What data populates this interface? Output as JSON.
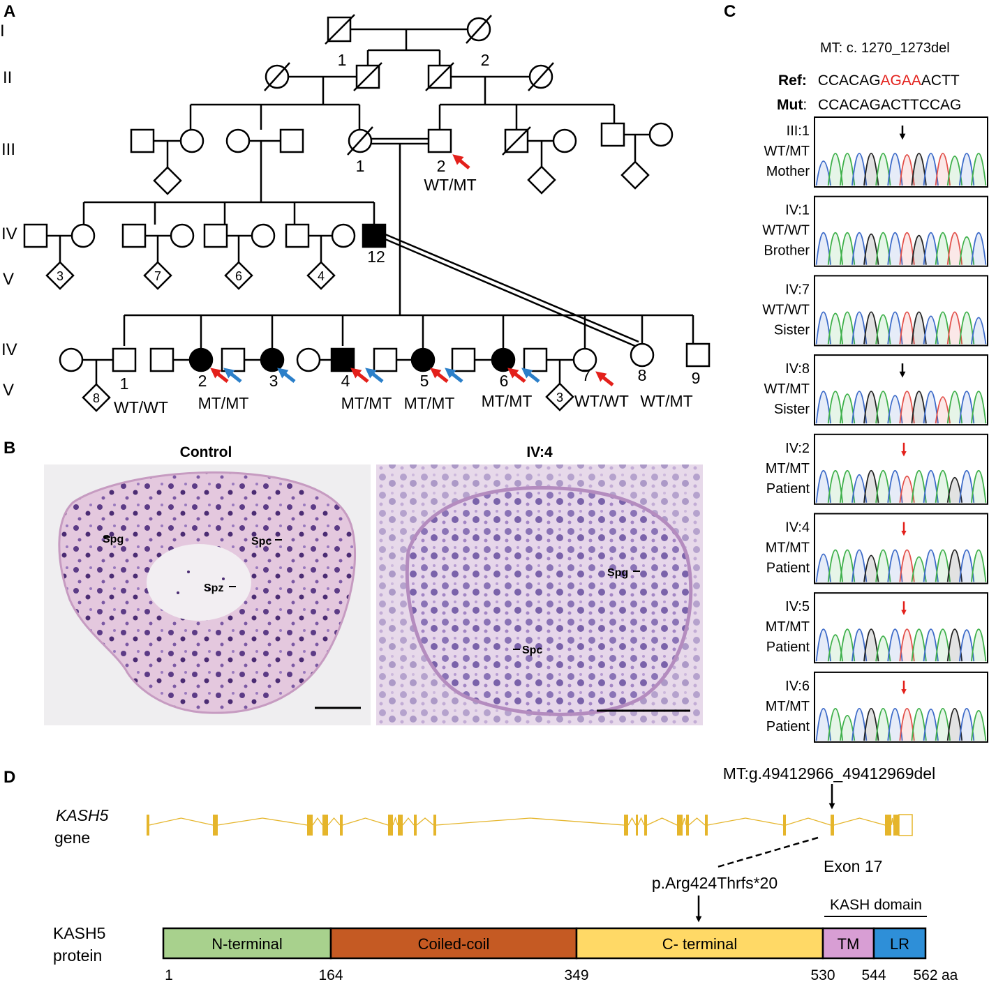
{
  "panels": {
    "a": "A",
    "b": "B",
    "c": "C",
    "d": "D"
  },
  "generations": [
    "I",
    "II",
    "III",
    "IV",
    "V",
    "IV",
    "V"
  ],
  "pedigree": {
    "gen1": [
      "1",
      "2"
    ],
    "gen3": {
      "mother": "1",
      "father": "2",
      "father_genotype": "WT/MT"
    },
    "offspring_counts": [
      "3",
      "7",
      "6",
      "4"
    ],
    "spouse_label": "12",
    "sibs": [
      {
        "num": "1",
        "genotype": "WT/WT",
        "offspring": "8"
      },
      {
        "num": "2",
        "genotype": "MT/MT"
      },
      {
        "num": "3",
        "genotype": ""
      },
      {
        "num": "4",
        "genotype": "MT/MT"
      },
      {
        "num": "5",
        "genotype": "MT/MT"
      },
      {
        "num": "6",
        "genotype": "MT/MT"
      },
      {
        "num": "7",
        "genotype": "WT/WT",
        "offspring": "3"
      },
      {
        "num": "8",
        "genotype": "WT/MT"
      },
      {
        "num": "9",
        "genotype": ""
      }
    ]
  },
  "histology": {
    "control_title": "Control",
    "patient_title": "IV:4",
    "control_labels": [
      "Spg",
      "Spc",
      "Spz"
    ],
    "patient_labels": [
      "Spg",
      "Spc"
    ]
  },
  "sequencing": {
    "mutation": "MT: c. 1270_1273del",
    "ref_label": "Ref:",
    "ref_prefix": "CCACAG",
    "ref_deleted": "AGAA",
    "ref_suffix": "ACTT",
    "mut_label": "Mut",
    "mut_colon": ":",
    "mut_seq": "CCACAGACTTCCAG",
    "samples": [
      {
        "id": "III:1",
        "genotype": "WT/MT",
        "role": "Mother",
        "arrow": "black"
      },
      {
        "id": "IV:1",
        "genotype": "WT/WT",
        "role": "Brother",
        "arrow": "none"
      },
      {
        "id": "IV:7",
        "genotype": "WT/WT",
        "role": "Sister",
        "arrow": "none"
      },
      {
        "id": "IV:8",
        "genotype": "WT/MT",
        "role": "Sister",
        "arrow": "black"
      },
      {
        "id": "IV:2",
        "genotype": "MT/MT",
        "role": "Patient",
        "arrow": "red"
      },
      {
        "id": "IV:4",
        "genotype": "MT/MT",
        "role": "Patient",
        "arrow": "red"
      },
      {
        "id": "IV:5",
        "genotype": "MT/MT",
        "role": "Patient",
        "arrow": "red"
      },
      {
        "id": "IV:6",
        "genotype": "MT/MT",
        "role": "Patient",
        "arrow": "red"
      }
    ]
  },
  "gene": {
    "name": "KASH5",
    "name_suffix": "gene",
    "mutation": "MT:g.49412966_49412969del",
    "exon": "Exon 17",
    "protein_change": "p.Arg424Thrfs*20",
    "exon_color": "#e5b52b"
  },
  "protein": {
    "name": "KASH5",
    "name_suffix": "protein",
    "kash_domain_label": "KASH domain",
    "total_length": 562,
    "unit": "aa",
    "domains": [
      {
        "label": "N-terminal",
        "start": 1,
        "end": 164,
        "color": "#a8d18d"
      },
      {
        "label": "Coiled-coil",
        "start": 164,
        "end": 349,
        "color": "#c55a23"
      },
      {
        "label": "C- terminal",
        "start": 349,
        "end": 530,
        "color": "#ffd966"
      },
      {
        "label": "TM",
        "start": 530,
        "end": 544,
        "color": "#d89ed4"
      },
      {
        "label": "LR",
        "start": 544,
        "end": 562,
        "color": "#2e8fd8"
      }
    ],
    "ticks": [
      "1",
      "164",
      "349",
      "530",
      "544",
      "562"
    ]
  }
}
